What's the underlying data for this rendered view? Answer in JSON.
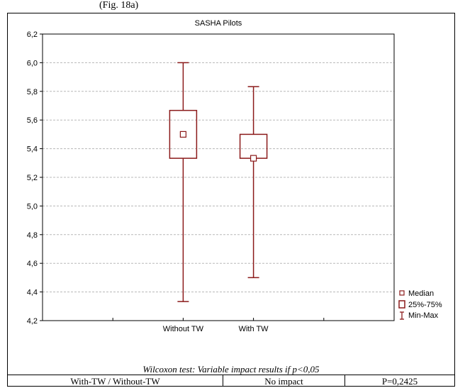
{
  "top_caption": "(Fig. 18a)",
  "chart_data": {
    "type": "boxplot",
    "title": "SASHA Pilots",
    "categories": [
      "Without TW",
      "With TW"
    ],
    "boxes": [
      {
        "category": "Without TW",
        "min": 4.333,
        "q1": 5.333,
        "median": 5.5,
        "q3": 5.667,
        "max": 6.0
      },
      {
        "category": "With TW",
        "min": 4.5,
        "q1": 5.333,
        "median": 5.333,
        "q3": 5.5,
        "max": 5.833
      }
    ],
    "ylim": [
      4.2,
      6.2
    ],
    "yticks": [
      "4,2",
      "4,4",
      "4,6",
      "4,8",
      "5,0",
      "5,2",
      "5,4",
      "5,6",
      "5,8",
      "6,0",
      "6,2"
    ],
    "grid": true,
    "legend_position": "bottom-right",
    "legend": [
      "Median",
      "25%-75%",
      "Min-Max"
    ],
    "color": "#8b1a1a"
  },
  "footnote": "Wilcoxon test: Variable impact results if p<0,05",
  "results": {
    "comparison": "With-TW / Without-TW",
    "impact": "No impact",
    "p_value": "P=0,2425"
  }
}
